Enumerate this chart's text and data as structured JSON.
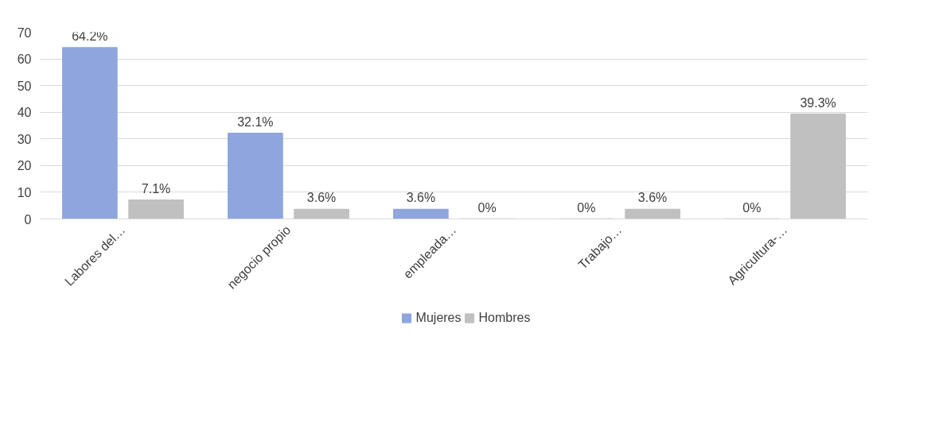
{
  "chart_data": {
    "type": "bar",
    "categories": [
      "Labores del…",
      "negocio propio",
      "empleada…",
      "Trabajo…",
      "Agricultura-…"
    ],
    "series": [
      {
        "name": "Mujeres",
        "color": "#8fa6dc",
        "values": [
          64.2,
          32.1,
          3.6,
          0,
          0
        ],
        "value_labels": [
          "64.2%",
          "32.1%",
          "3.6%",
          "0%",
          "0%"
        ]
      },
      {
        "name": "Hombres",
        "color": "#c0c0c0",
        "values": [
          7.1,
          3.6,
          0,
          3.6,
          39.3
        ],
        "value_labels": [
          "7.1%",
          "3.6%",
          "0%",
          "3.6%",
          "39.3%"
        ]
      }
    ],
    "ylim": [
      0,
      70
    ],
    "yticks": [
      0,
      10,
      20,
      30,
      40,
      50,
      60,
      70
    ],
    "grid": "y",
    "legend": "bottom"
  }
}
